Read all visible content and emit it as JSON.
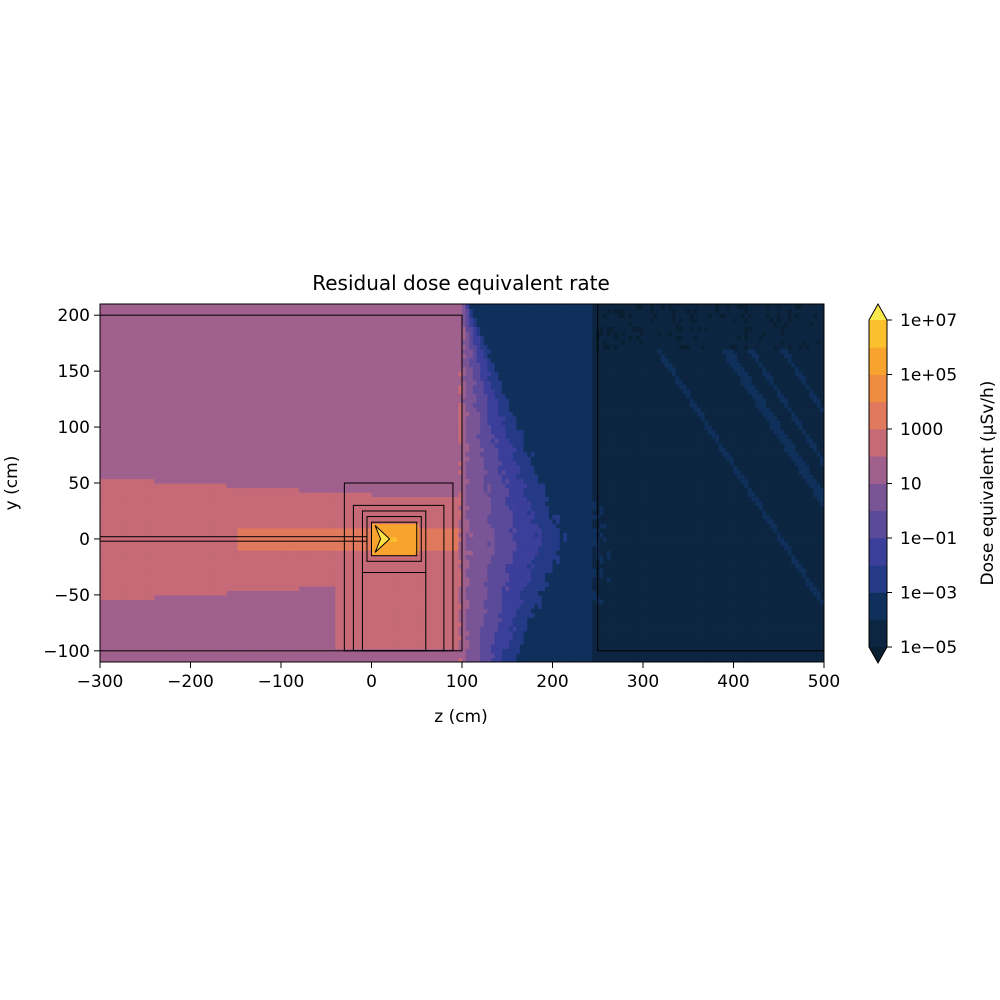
{
  "chart_data": {
    "type": "heatmap",
    "title": "Residual dose equivalent rate",
    "xlabel": "z (cm)",
    "ylabel": "y (cm)",
    "xlim": [
      -300,
      500
    ],
    "ylim": [
      -110,
      210
    ],
    "x_ticks": [
      -300,
      -200,
      -100,
      0,
      100,
      200,
      300,
      400,
      500
    ],
    "x_tick_labels": [
      "−300",
      "−200",
      "−100",
      "0",
      "100",
      "200",
      "300",
      "400",
      "500"
    ],
    "y_ticks": [
      -100,
      -50,
      0,
      50,
      100,
      150,
      200
    ],
    "y_tick_labels": [
      "−100",
      "−50",
      "0",
      "50",
      "100",
      "150",
      "200"
    ],
    "grid": false,
    "colorbar": {
      "label": "Dose equivalent (μSv/h)",
      "scale": "log",
      "levels_log10": [
        -5,
        -4,
        -3,
        -2,
        -1,
        0,
        1,
        2,
        3,
        4,
        5,
        6,
        7
      ],
      "ticks_log10": [
        -5,
        -3,
        -1,
        1,
        3,
        5,
        7
      ],
      "tick_labels": [
        "1e−05",
        "1e−03",
        "1e−01",
        "10",
        "1000",
        "1e+05",
        "1e+07"
      ],
      "extend": "both",
      "colors": [
        "#0c2541",
        "#10305c",
        "#243a87",
        "#3b3f9a",
        "#5b4a9a",
        "#7a5596",
        "#a0608d",
        "#c56a76",
        "#e0795d",
        "#f08c3f",
        "#f8a32e",
        "#fbc02e",
        "#fde245"
      ],
      "under_color": "#0b1f33",
      "over_color": "#f9e94b"
    },
    "dose_log10_map": {
      "description": "Approximate log10 of dose rate read from the filled contours",
      "regions": [
        {
          "name": "upper-left hall",
          "value_log10": 1.5
        },
        {
          "name": "beam-axis halo",
          "value_log10": 2.5
        },
        {
          "name": "inner halo",
          "value_log10": 3.5
        },
        {
          "name": "target",
          "value_log10": 6.5
        },
        {
          "name": "far downstream",
          "value_log10": -4.5
        }
      ]
    },
    "geometry_outlines": [
      {
        "name": "hall-wall",
        "z": [
          -300,
          100
        ],
        "y": [
          -100,
          200
        ]
      },
      {
        "name": "outer-shield",
        "z": [
          -30,
          90
        ],
        "y": [
          -100,
          50
        ]
      },
      {
        "name": "mid-shield",
        "z": [
          -20,
          80
        ],
        "y": [
          -100,
          30
        ]
      },
      {
        "name": "target-housing",
        "z": [
          -10,
          60
        ],
        "y": [
          -30,
          25
        ]
      },
      {
        "name": "lower-block",
        "z": [
          -10,
          60
        ],
        "y": [
          -100,
          -30
        ]
      },
      {
        "name": "target-box",
        "z": [
          -5,
          55
        ],
        "y": [
          -20,
          20
        ]
      },
      {
        "name": "target-core",
        "z": [
          0,
          50
        ],
        "y": [
          -15,
          15
        ]
      },
      {
        "name": "beam-pipe",
        "z": [
          -300,
          -5
        ],
        "y": [
          -2,
          2
        ]
      },
      {
        "name": "downstream-room",
        "z": [
          250,
          500
        ],
        "y": [
          -100,
          210
        ]
      }
    ]
  }
}
